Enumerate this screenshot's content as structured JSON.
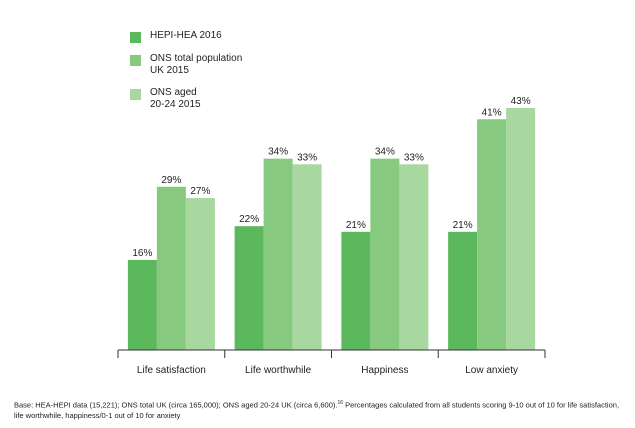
{
  "colors": {
    "series_1": "#5cb85c",
    "series_2": "#86c97f",
    "series_3": "#a8d8a0",
    "axis": "#333333"
  },
  "chart_data": {
    "type": "bar",
    "categories": [
      "Life satisfaction",
      "Life worthwhile",
      "Happiness",
      "Low anxiety"
    ],
    "series": [
      {
        "name": "HEPI-HEA 2016",
        "values": [
          16,
          22,
          21,
          21
        ]
      },
      {
        "name": "ONS total population\nUK 2015",
        "values": [
          29,
          34,
          34,
          41
        ]
      },
      {
        "name": "ONS aged\n20-24 2015",
        "values": [
          27,
          33,
          33,
          43
        ]
      }
    ],
    "value_suffix": "%",
    "ylim": [
      0,
      43
    ],
    "grid": false,
    "legend_position": "top-left",
    "footnote_main": "Base: HEA-HEPI data (15,221); ONS total UK (circa 165,000); ONS aged 20-24 UK (circa 6,600).",
    "footnote_ref": "16",
    "footnote_rest": " Percentages calculated from all students scoring 9-10 out of 10 for life satisfaction, life worthwhile, happiness/0-1 out of 10 for anxiety"
  }
}
